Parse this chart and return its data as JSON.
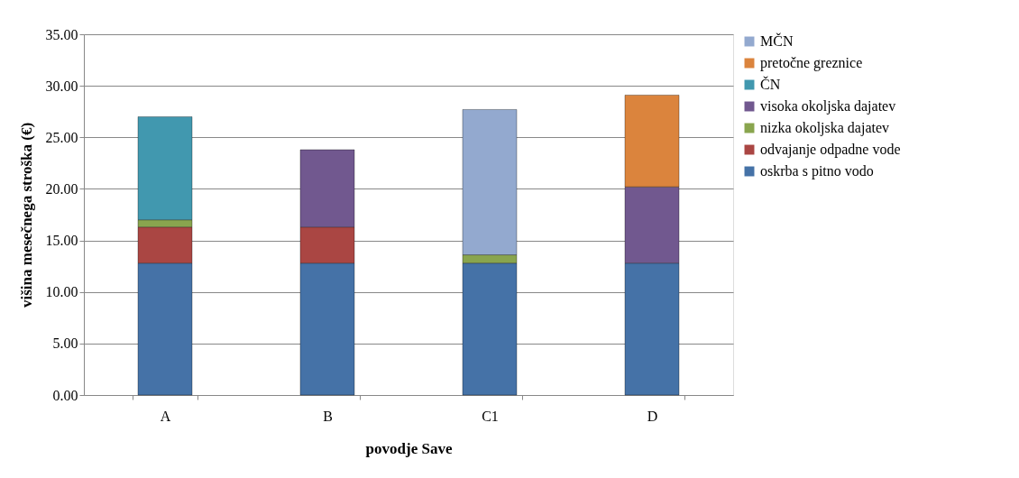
{
  "chart_data": {
    "type": "bar",
    "stacked": true,
    "xlabel": "povodje Save",
    "ylabel": "višina mesečnega stroška (€)",
    "categories": [
      "A",
      "B",
      "C1",
      "D"
    ],
    "series": [
      {
        "name": "oskrba s pitno vodo",
        "color": "#4572a7",
        "values": [
          12.8,
          12.8,
          12.8,
          12.8
        ]
      },
      {
        "name": "odvajanje odpadne vode",
        "color": "#aa4643",
        "values": [
          3.5,
          3.5,
          null,
          null
        ]
      },
      {
        "name": "nizka okoljska dajatev",
        "color": "#89a54e",
        "values": [
          0.7,
          null,
          0.8,
          null
        ]
      },
      {
        "name": "visoka okoljska dajatev",
        "color": "#71588f",
        "values": [
          null,
          7.5,
          null,
          7.4
        ]
      },
      {
        "name": "ČN",
        "color": "#4198af",
        "values": [
          10.0,
          null,
          null,
          null
        ]
      },
      {
        "name": "pretočne greznice",
        "color": "#db843d",
        "values": [
          null,
          null,
          null,
          8.9
        ]
      },
      {
        "name": "MČN",
        "color": "#93a9cf",
        "values": [
          null,
          null,
          14.1,
          null
        ]
      }
    ],
    "ylim": [
      0,
      35
    ],
    "yticks": [
      {
        "value": 0,
        "label": "0.00"
      },
      {
        "value": 5,
        "label": "5.00"
      },
      {
        "value": 10,
        "label": "10.00"
      },
      {
        "value": 15,
        "label": "15.00"
      },
      {
        "value": 20,
        "label": "20.00"
      },
      {
        "value": 25,
        "label": "25.00"
      },
      {
        "value": 30,
        "label": "30.00"
      },
      {
        "value": 35,
        "label": "35.00"
      }
    ],
    "grid": "y",
    "legend": "right"
  }
}
